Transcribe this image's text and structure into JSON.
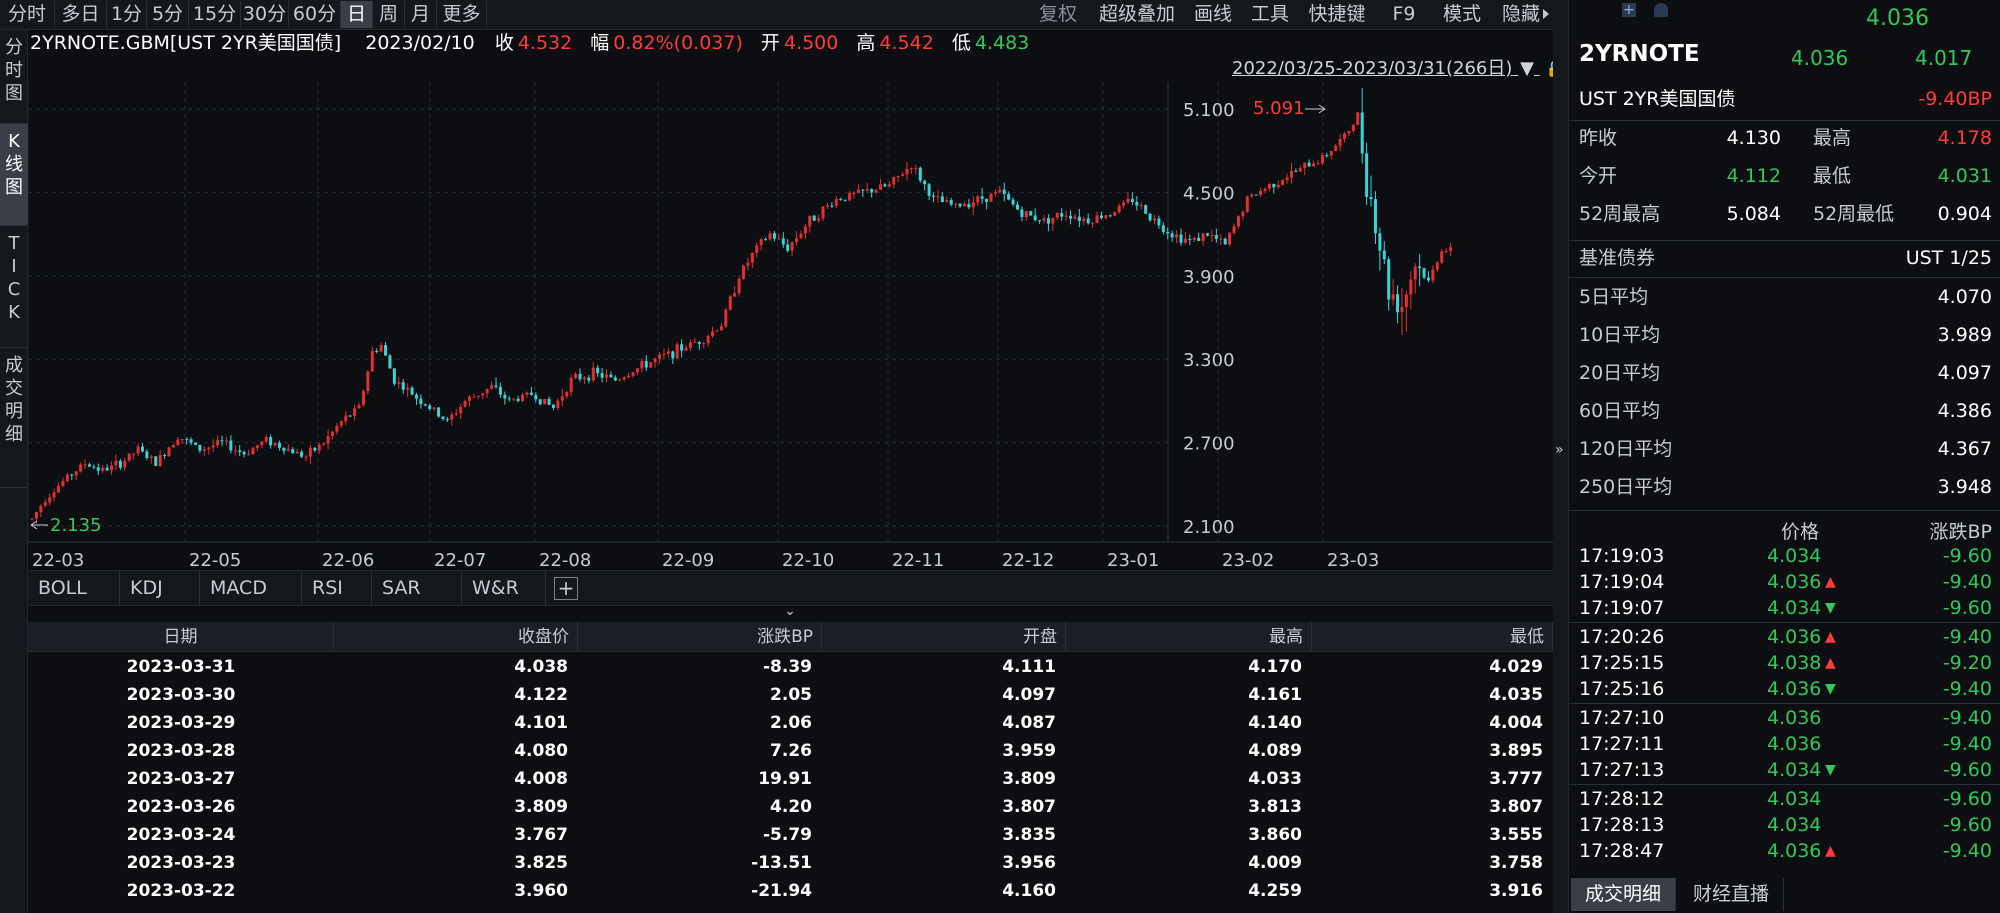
{
  "toolbar": {
    "periods": [
      "分时",
      "多日",
      "1分",
      "5分",
      "15分",
      "30分",
      "60分",
      "日",
      "周",
      "月",
      "更多"
    ],
    "active_period": "日",
    "right_items": [
      "复权",
      "超级叠加",
      "画线",
      "工具",
      "快捷键",
      "F9",
      "模式",
      "隐藏"
    ]
  },
  "left_tabs": [
    "分时图",
    "K线图",
    "TICK",
    "成交明细"
  ],
  "info": {
    "symbol": "2YRNOTE.GBM[UST 2YR美国国债]",
    "date": "2023/02/10",
    "close_label": "收",
    "close": "4.532",
    "change_label": "幅",
    "change": "0.82%(0.037)",
    "open_label": "开",
    "open": "4.500",
    "high_label": "高",
    "high": "4.542",
    "low_label": "低",
    "low": "4.483"
  },
  "range_label": "2022/03/25-2023/03/31(266日)",
  "chart_data": {
    "type": "candlestick",
    "y_ticks": [
      "5.100",
      "4.500",
      "3.900",
      "3.300",
      "2.700",
      "2.100"
    ],
    "ylim": [
      2.1,
      5.1
    ],
    "x_ticks": [
      "22-03",
      "22-05",
      "22-06",
      "22-07",
      "22-08",
      "22-09",
      "22-10",
      "22-11",
      "22-12",
      "23-01",
      "23-02",
      "23-03"
    ],
    "max_label": "5.091",
    "min_label": "2.135",
    "path": [
      [
        0,
        2.15
      ],
      [
        3,
        2.3
      ],
      [
        8,
        2.45
      ],
      [
        12,
        2.55
      ],
      [
        16,
        2.5
      ],
      [
        20,
        2.55
      ],
      [
        24,
        2.65
      ],
      [
        28,
        2.55
      ],
      [
        33,
        2.75
      ],
      [
        38,
        2.65
      ],
      [
        43,
        2.7
      ],
      [
        48,
        2.62
      ],
      [
        53,
        2.72
      ],
      [
        58,
        2.65
      ],
      [
        62,
        2.6
      ],
      [
        66,
        2.7
      ],
      [
        70,
        2.85
      ],
      [
        74,
        2.95
      ],
      [
        77,
        3.35
      ],
      [
        79,
        3.4
      ],
      [
        82,
        3.15
      ],
      [
        86,
        3.05
      ],
      [
        90,
        2.95
      ],
      [
        94,
        2.85
      ],
      [
        98,
        3.0
      ],
      [
        104,
        3.1
      ],
      [
        108,
        3.0
      ],
      [
        113,
        3.05
      ],
      [
        118,
        2.95
      ],
      [
        122,
        3.15
      ],
      [
        127,
        3.2
      ],
      [
        132,
        3.15
      ],
      [
        138,
        3.25
      ],
      [
        145,
        3.35
      ],
      [
        152,
        3.45
      ],
      [
        156,
        3.55
      ],
      [
        160,
        3.9
      ],
      [
        164,
        4.1
      ],
      [
        167,
        4.2
      ],
      [
        171,
        4.1
      ],
      [
        176,
        4.3
      ],
      [
        182,
        4.45
      ],
      [
        188,
        4.5
      ],
      [
        194,
        4.55
      ],
      [
        199,
        4.7
      ],
      [
        204,
        4.45
      ],
      [
        209,
        4.4
      ],
      [
        214,
        4.45
      ],
      [
        219,
        4.5
      ],
      [
        224,
        4.35
      ],
      [
        229,
        4.3
      ],
      [
        234,
        4.35
      ],
      [
        239,
        4.3
      ],
      [
        244,
        4.35
      ],
      [
        249,
        4.45
      ],
      [
        254,
        4.3
      ],
      [
        258,
        4.2
      ],
      [
        262,
        4.15
      ],
      [
        266,
        4.2
      ],
      [
        270,
        4.12
      ],
      [
        275,
        4.45
      ],
      [
        280,
        4.55
      ],
      [
        286,
        4.65
      ],
      [
        292,
        4.75
      ],
      [
        297,
        4.9
      ],
      [
        300,
        5.05
      ],
      [
        302,
        4.6
      ],
      [
        304,
        4.3
      ],
      [
        307,
        3.8
      ],
      [
        310,
        3.7
      ],
      [
        313,
        4.0
      ],
      [
        316,
        3.85
      ],
      [
        319,
        4.1
      ],
      [
        322,
        4.05
      ]
    ],
    "candle_count": 322
  },
  "indicators": [
    "BOLL",
    "KDJ",
    "MACD",
    "RSI",
    "SAR",
    "W&R"
  ],
  "table": {
    "headers": [
      "日期",
      "收盘价",
      "涨跌BP",
      "开盘",
      "最高",
      "最低"
    ],
    "rows": [
      [
        "2023-03-31",
        "4.038",
        "-8.39",
        "4.111",
        "4.170",
        "4.029"
      ],
      [
        "2023-03-30",
        "4.122",
        "2.05",
        "4.097",
        "4.161",
        "4.035"
      ],
      [
        "2023-03-29",
        "4.101",
        "2.06",
        "4.087",
        "4.140",
        "4.004"
      ],
      [
        "2023-03-28",
        "4.080",
        "7.26",
        "3.959",
        "4.089",
        "3.895"
      ],
      [
        "2023-03-27",
        "4.008",
        "19.91",
        "3.809",
        "4.033",
        "3.777"
      ],
      [
        "2023-03-26",
        "3.809",
        "4.20",
        "3.807",
        "3.813",
        "3.807"
      ],
      [
        "2023-03-24",
        "3.767",
        "-5.79",
        "3.835",
        "3.860",
        "3.555"
      ],
      [
        "2023-03-23",
        "3.825",
        "-13.51",
        "3.956",
        "4.009",
        "3.758"
      ],
      [
        "2023-03-22",
        "3.960",
        "-21.94",
        "4.160",
        "4.259",
        "3.916"
      ]
    ]
  },
  "panel": {
    "top_price": "4.036",
    "code": "2YRNOTE",
    "bid": "4.036",
    "ask": "4.017",
    "name": "UST 2YR美国国债",
    "change_bp": "-9.40BP",
    "stats": [
      {
        "l1": "昨收",
        "v1": "4.130",
        "c1": "white",
        "l2": "最高",
        "v2": "4.178",
        "c2": "red"
      },
      {
        "l1": "今开",
        "v1": "4.112",
        "c1": "green",
        "l2": "最低",
        "v2": "4.031",
        "c2": "green"
      },
      {
        "l1": "52周最高",
        "v1": "5.084",
        "c1": "white",
        "l2": "52周最低",
        "v2": "0.904",
        "c2": "white"
      }
    ],
    "benchmark_label": "基准债券",
    "benchmark_value": "UST 1/25",
    "averages": [
      {
        "label": "5日平均",
        "value": "4.070"
      },
      {
        "label": "10日平均",
        "value": "3.989"
      },
      {
        "label": "20日平均",
        "value": "4.097"
      },
      {
        "label": "60日平均",
        "value": "4.386"
      },
      {
        "label": "120日平均",
        "value": "4.367"
      },
      {
        "label": "250日平均",
        "value": "3.948"
      }
    ],
    "tick_header_price": "价格",
    "tick_header_change": "涨跌BP",
    "ticks": [
      {
        "time": "17:19:03",
        "price": "4.034",
        "arrow": "",
        "change": "-9.60"
      },
      {
        "time": "17:19:04",
        "price": "4.036",
        "arrow": "up",
        "change": "-9.40"
      },
      {
        "time": "17:19:07",
        "price": "4.034",
        "arrow": "down",
        "change": "-9.60"
      },
      {
        "time": "17:20:26",
        "price": "4.036",
        "arrow": "up",
        "change": "-9.40"
      },
      {
        "time": "17:25:15",
        "price": "4.038",
        "arrow": "up",
        "change": "-9.20"
      },
      {
        "time": "17:25:16",
        "price": "4.036",
        "arrow": "down",
        "change": "-9.40"
      },
      {
        "time": "17:27:10",
        "price": "4.036",
        "arrow": "",
        "change": "-9.40"
      },
      {
        "time": "17:27:11",
        "price": "4.036",
        "arrow": "",
        "change": "-9.40"
      },
      {
        "time": "17:27:13",
        "price": "4.034",
        "arrow": "down",
        "change": "-9.60"
      },
      {
        "time": "17:28:12",
        "price": "4.034",
        "arrow": "",
        "change": "-9.60"
      },
      {
        "time": "17:28:13",
        "price": "4.034",
        "arrow": "",
        "change": "-9.60"
      },
      {
        "time": "17:28:47",
        "price": "4.036",
        "arrow": "up",
        "change": "-9.40"
      }
    ],
    "bottom_tabs": [
      "成交明细",
      "财经直播"
    ]
  },
  "icons": {
    "lock": "lock-icon",
    "dropdown": "triangle-down-icon",
    "expand": "chevron-right-icon",
    "collapse": "double-chevron-down-icon"
  }
}
